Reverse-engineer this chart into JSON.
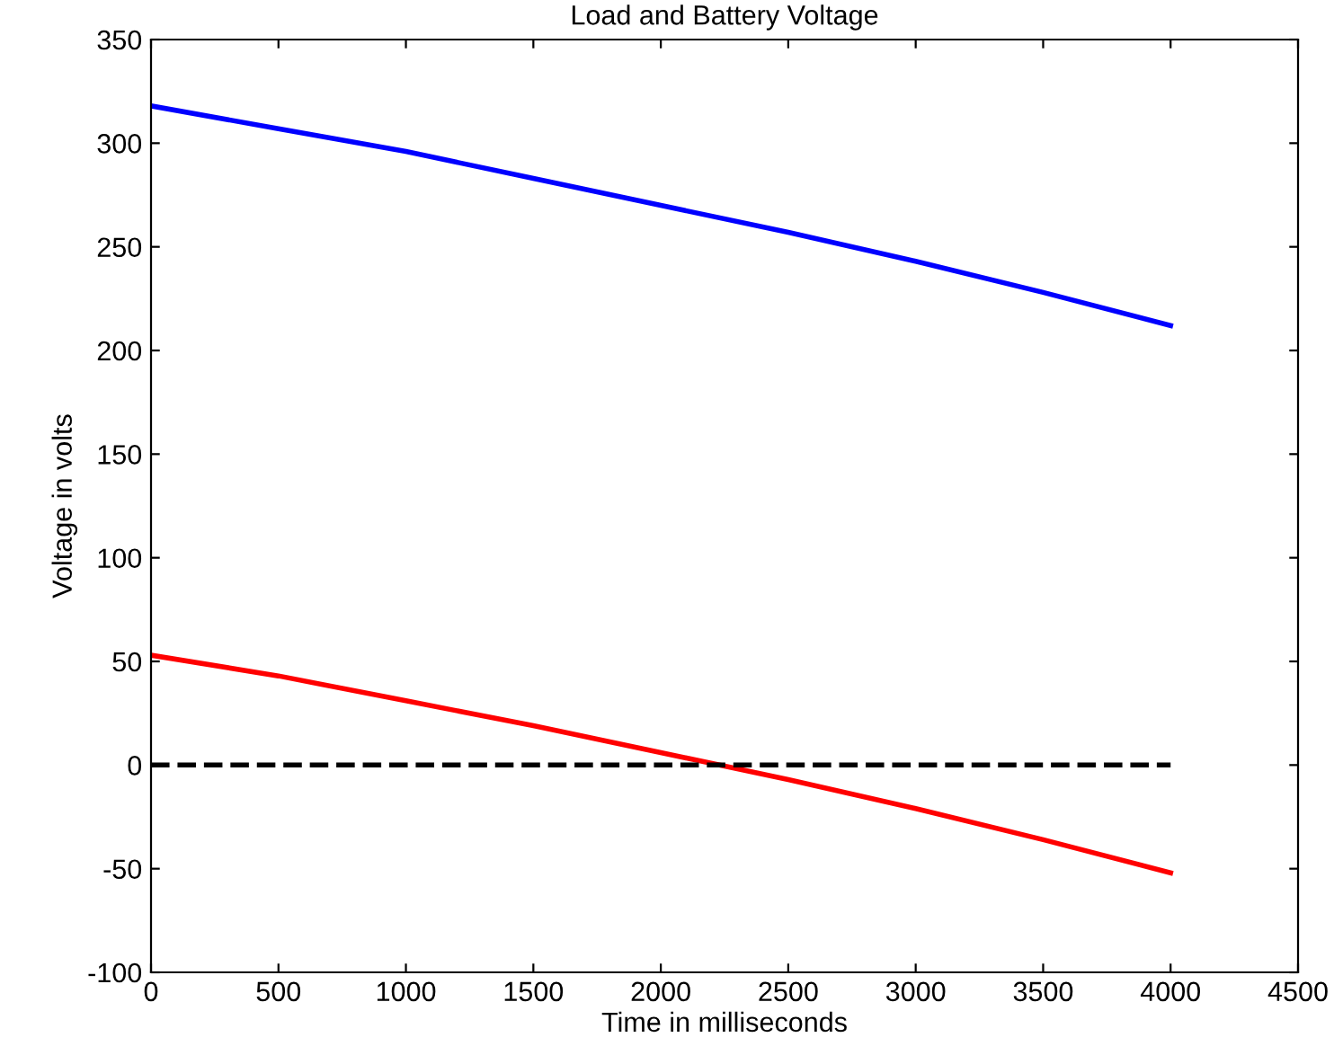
{
  "chart_data": {
    "type": "line",
    "title": "Load and Battery Voltage",
    "xlabel": "Time in milliseconds",
    "ylabel": "Voltage in volts",
    "xlim": [
      0,
      4500
    ],
    "xticks": [
      0,
      500,
      1000,
      1500,
      2000,
      2500,
      3000,
      3500,
      4000,
      4500
    ],
    "ylim": [
      -100,
      350
    ],
    "yticks": [
      -100,
      -50,
      0,
      50,
      100,
      150,
      200,
      250,
      300,
      350
    ],
    "grid": false,
    "legend": false,
    "marker": "none",
    "series": [
      {
        "color": "#0000ff",
        "line_style": "solid",
        "x": [
          0,
          500,
          1000,
          1500,
          2000,
          2500,
          3000,
          3500,
          4000
        ],
        "values": [
          318,
          307,
          296,
          283,
          270,
          257,
          243,
          228,
          212
        ]
      },
      {
        "color": "#ff0000",
        "line_style": "solid",
        "x": [
          0,
          500,
          1000,
          1500,
          2000,
          2500,
          3000,
          3500,
          4000
        ],
        "values": [
          53,
          43,
          31,
          19,
          6,
          -7,
          -21,
          -36,
          -52
        ]
      },
      {
        "color": "#000000",
        "line_style": "dashed",
        "x": [
          0,
          4000
        ],
        "values": [
          0,
          0
        ]
      }
    ]
  }
}
